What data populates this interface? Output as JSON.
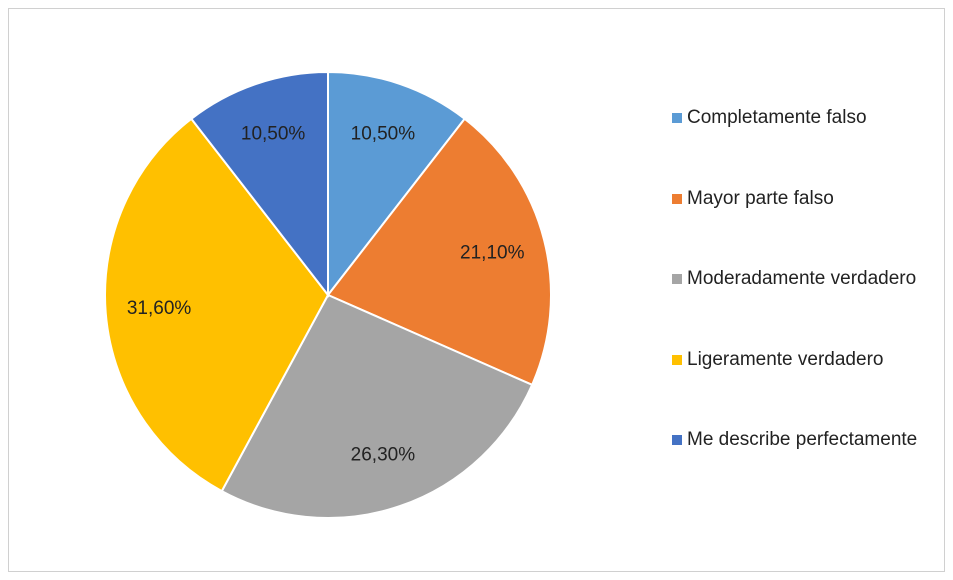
{
  "chart_data": {
    "type": "pie",
    "categories": [
      "Completamente falso",
      "Mayor parte falso",
      "Moderadamente verdadero",
      "Ligeramente verdadero",
      "Me describe perfectamente"
    ],
    "values": [
      10.5,
      21.1,
      26.3,
      31.6,
      10.5
    ],
    "value_labels": [
      "10,50%",
      "21,10%",
      "26,30%",
      "31,60%",
      "10,50%"
    ],
    "colors": [
      "#5b9bd5",
      "#ed7d31",
      "#a5a5a5",
      "#ffc000",
      "#4472c4"
    ],
    "legend": "right"
  }
}
